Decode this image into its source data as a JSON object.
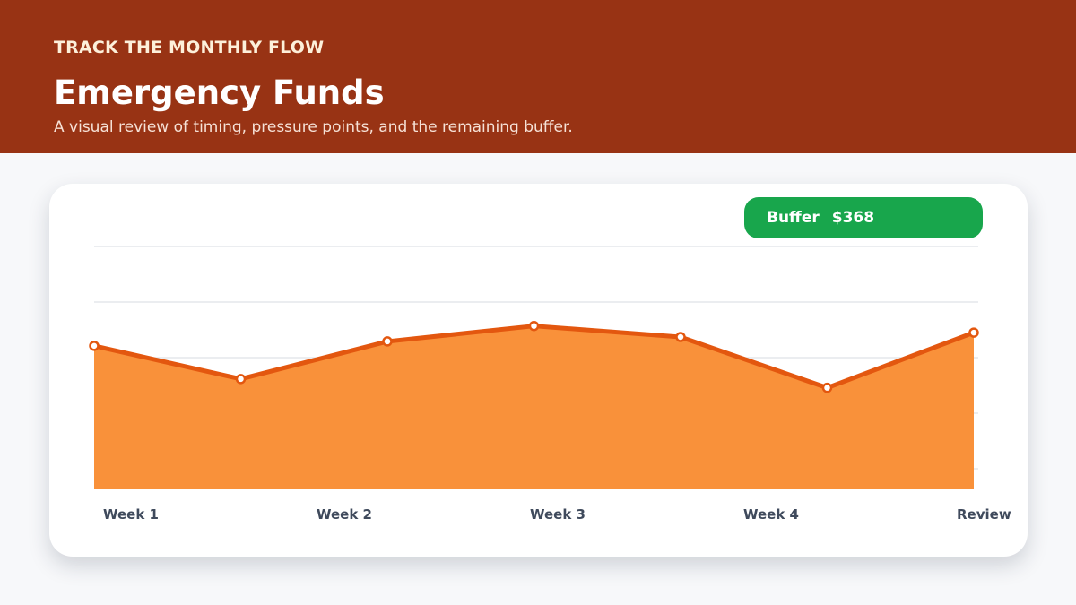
{
  "header": {
    "eyebrow": "TRACK THE MONTHLY FLOW",
    "title": "Emergency Funds",
    "subtitle": "A visual review of timing, pressure points, and the remaining buffer."
  },
  "badge": {
    "label": "Buffer",
    "value": "$368"
  },
  "colors": {
    "header_bg": "#983314",
    "area_fill": "#f9913a",
    "line": "#e3570f",
    "badge_bg": "#18a64c"
  },
  "chart_data": {
    "type": "area",
    "x": [
      0,
      1,
      2,
      3,
      4,
      5,
      6
    ],
    "values": [
      65,
      50,
      67,
      74,
      69,
      46,
      71
    ],
    "ylim": [
      0,
      110
    ],
    "grid": true,
    "x_tick_labels": [
      "Week 1",
      "Week 2",
      "Week 3",
      "Week 4",
      "Review"
    ],
    "title": "",
    "xlabel": "",
    "ylabel": ""
  }
}
